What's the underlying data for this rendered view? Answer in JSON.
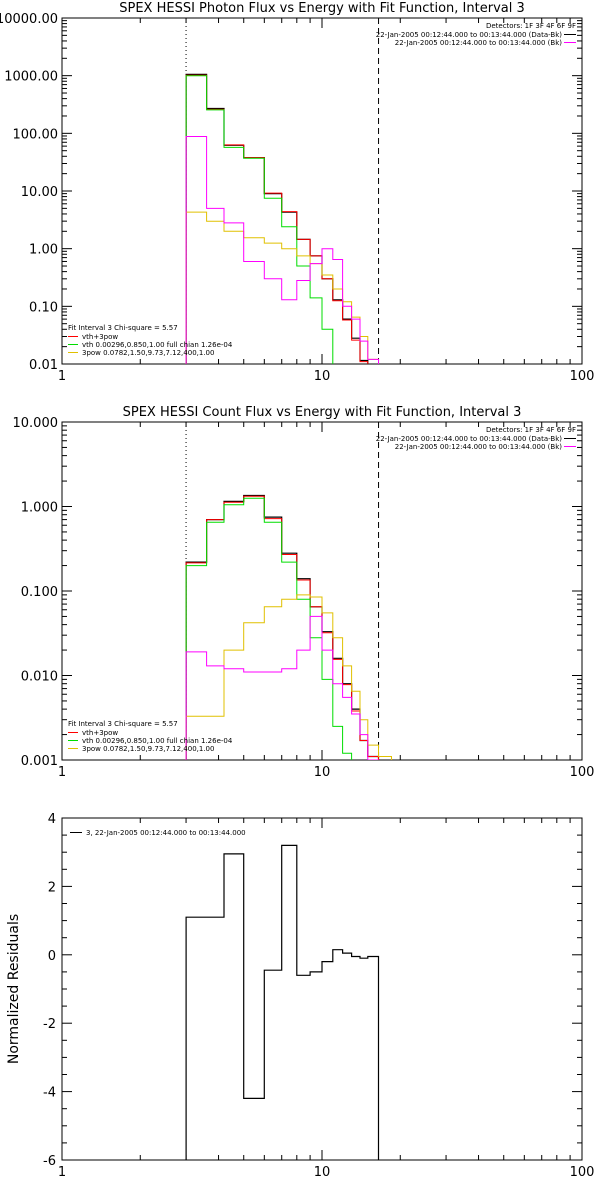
{
  "chart_data": [
    {
      "type": "line",
      "title": "SPEX HESSI Photon Flux vs Energy with Fit Function, Interval 3",
      "x_scale": "log",
      "y_scale": "log",
      "xlim": [
        1,
        100
      ],
      "ylim": [
        0.01,
        10000
      ],
      "xtick_labels": [
        "1",
        "10",
        "100"
      ],
      "ytick_labels": [
        "0.01",
        "0.10",
        "1.00",
        "10.00",
        "100.00",
        "1000.00",
        "10000.00"
      ],
      "detectors_label": "Detectors: 1F 3F 4F 6F 9F",
      "time_legend": [
        {
          "label": "22-Jan-2005 00:12:44.000 to 00:13:44.000 (Data-Bk)",
          "color": "#000000"
        },
        {
          "label": "22-Jan-2005 00:12:44.000 to 00:13:44.000 (Bk)",
          "color": "#ff00ff"
        }
      ],
      "fit_legend_header": "Fit Interval 3   Chi-square = 5.57",
      "fit_legend": [
        {
          "label": "vth+3pow",
          "color": "#ff0000"
        },
        {
          "label": "vth 0.00296,0.850,1.00   full chian 1.26e-04",
          "color": "#00dd00"
        },
        {
          "label": "3pow 0.0782,1.50,9.73,7.12,400,1.00",
          "color": "#e0c000"
        }
      ],
      "bin_edges": [
        3.0,
        3.6,
        4.2,
        5.0,
        6.0,
        7.0,
        8.0,
        9.0,
        10.0,
        11.0,
        12.0,
        13.0,
        14.0,
        15.0,
        16.5,
        18.5
      ],
      "vlines": [
        {
          "x": 3.0,
          "style": "dotted"
        },
        {
          "x": 16.5,
          "style": "dashed"
        }
      ],
      "series": [
        {
          "key": "data_minus_bk",
          "color": "#000000",
          "values": [
            1050,
            270,
            62,
            38,
            9,
            4.3,
            1.45,
            0.75,
            0.3,
            0.13,
            0.06,
            0.028,
            0.0115,
            0.0085,
            null
          ]
        },
        {
          "key": "vth_3pow",
          "color": "#ff0000",
          "values": [
            1020,
            260,
            63,
            38,
            9.2,
            4.4,
            1.45,
            0.75,
            0.3,
            0.125,
            0.058,
            0.026,
            0.011,
            0.0088,
            null
          ]
        },
        {
          "key": "vth",
          "color": "#00dd00",
          "values": [
            1000,
            255,
            57,
            37,
            7.5,
            2.4,
            0.5,
            0.14,
            0.04,
            0.0095,
            null,
            null,
            null,
            null,
            null
          ]
        },
        {
          "key": "pow",
          "color": "#e0c000",
          "values": [
            4.3,
            3.0,
            2.0,
            1.55,
            1.25,
            1.0,
            0.75,
            0.55,
            0.35,
            0.2,
            0.12,
            0.065,
            0.03,
            0.012,
            0.0095
          ]
        },
        {
          "key": "bk",
          "color": "#ff00ff",
          "values": [
            88,
            5.0,
            2.8,
            0.6,
            0.3,
            0.13,
            0.28,
            0.55,
            1.0,
            0.65,
            0.1,
            0.06,
            0.025,
            0.012,
            null
          ]
        }
      ]
    },
    {
      "type": "line",
      "title": "SPEX HESSI Count Flux vs Energy with Fit Function, Interval 3",
      "x_scale": "log",
      "y_scale": "log",
      "xlim": [
        1,
        100
      ],
      "ylim": [
        0.001,
        10
      ],
      "xtick_labels": [
        "1",
        "10",
        "100"
      ],
      "ytick_labels": [
        "0.001",
        "0.010",
        "0.100",
        "1.000",
        "10.000"
      ],
      "detectors_label": "Detectors: 1F 3F 4F 6F 9F",
      "time_legend": [
        {
          "label": "22-Jan-2005 00:12:44.000 to 00:13:44.000 (Data-Bk)",
          "color": "#000000"
        },
        {
          "label": "22-Jan-2005 00:12:44.000 to 00:13:44.000 (Bk)",
          "color": "#ff00ff"
        }
      ],
      "fit_legend_header": "Fit Interval 3   Chi-square = 5.57",
      "fit_legend": [
        {
          "label": "vth+3pow",
          "color": "#ff0000"
        },
        {
          "label": "vth 0.00296,0.850,1.00   full chian 1.26e-04",
          "color": "#00dd00"
        },
        {
          "label": "3pow 0.0782,1.50,9.73,7.12,400,1.00",
          "color": "#e0c000"
        }
      ],
      "bin_edges": [
        3.0,
        3.6,
        4.2,
        5.0,
        6.0,
        7.0,
        8.0,
        9.0,
        10.0,
        11.0,
        12.0,
        13.0,
        14.0,
        15.0,
        16.5,
        18.5
      ],
      "vlines": [
        {
          "x": 3.0,
          "style": "dotted"
        },
        {
          "x": 16.5,
          "style": "dashed"
        }
      ],
      "series": [
        {
          "key": "data_minus_bk",
          "color": "#000000",
          "values": [
            0.22,
            0.7,
            1.15,
            1.35,
            0.75,
            0.28,
            0.14,
            0.065,
            0.033,
            0.016,
            0.008,
            0.004,
            0.0017,
            0.0011,
            null
          ]
        },
        {
          "key": "vth_3pow",
          "color": "#ff0000",
          "values": [
            0.215,
            0.7,
            1.12,
            1.32,
            0.72,
            0.27,
            0.135,
            0.065,
            0.032,
            0.0155,
            0.0078,
            0.0038,
            0.0017,
            0.0011,
            null
          ]
        },
        {
          "key": "vth",
          "color": "#00dd00",
          "values": [
            0.2,
            0.65,
            1.05,
            1.25,
            0.65,
            0.22,
            0.08,
            0.028,
            0.009,
            0.0025,
            0.0012,
            null,
            null,
            null,
            null
          ]
        },
        {
          "key": "pow",
          "color": "#e0c000",
          "values": [
            0.0033,
            0.0033,
            0.02,
            0.042,
            0.065,
            0.08,
            0.09,
            0.085,
            0.055,
            0.028,
            0.013,
            0.0065,
            0.003,
            0.0015,
            0.0011
          ]
        },
        {
          "key": "bk",
          "color": "#ff00ff",
          "values": [
            0.019,
            0.013,
            0.012,
            0.011,
            0.011,
            0.012,
            0.02,
            0.05,
            0.02,
            0.008,
            0.0055,
            0.0035,
            0.002,
            0.001,
            null
          ]
        }
      ]
    },
    {
      "type": "line",
      "title": "",
      "ylabel": "Normalized Residuals",
      "x_scale": "log",
      "y_scale": "linear",
      "xlim": [
        1,
        100
      ],
      "ylim": [
        -6,
        4
      ],
      "xtick_labels": [
        "1",
        "10",
        "100"
      ],
      "ytick_labels": [
        "-6",
        "-4",
        "-2",
        "0",
        "2",
        "4"
      ],
      "legend": [
        {
          "label": "3, 22-Jan-2005 00:12:44.000 to 00:13:44.000",
          "color": "#000000"
        }
      ],
      "bin_edges": [
        3.0,
        3.6,
        4.2,
        5.0,
        6.0,
        7.0,
        8.0,
        9.0,
        10.0,
        11.0,
        12.0,
        13.0,
        14.0,
        15.0,
        16.5
      ],
      "series": [
        {
          "key": "residuals",
          "color": "#000000",
          "values": [
            1.1,
            1.1,
            2.95,
            -4.2,
            -0.45,
            3.2,
            -0.6,
            -0.5,
            -0.2,
            0.15,
            0.05,
            -0.05,
            -0.1,
            -0.05
          ]
        }
      ]
    }
  ]
}
